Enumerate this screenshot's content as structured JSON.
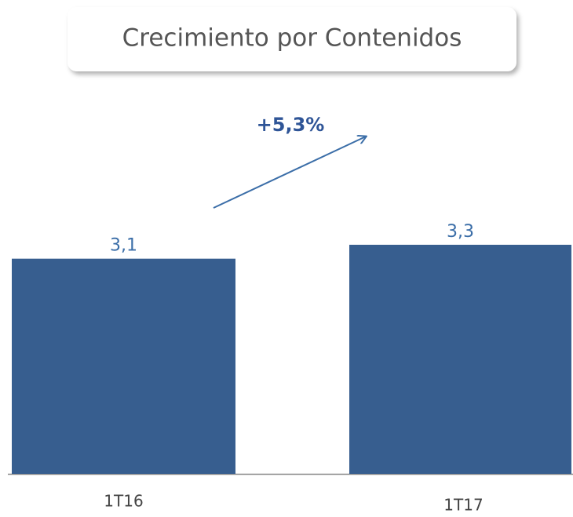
{
  "chart_data": {
    "type": "bar",
    "title": "Crecimiento por Contenidos",
    "categories": [
      "1T16",
      "1T17"
    ],
    "values": [
      3.1,
      3.3
    ],
    "value_labels": [
      "3,1",
      "3,3"
    ],
    "color": "#375e8f",
    "annotation": "+5,3%"
  }
}
